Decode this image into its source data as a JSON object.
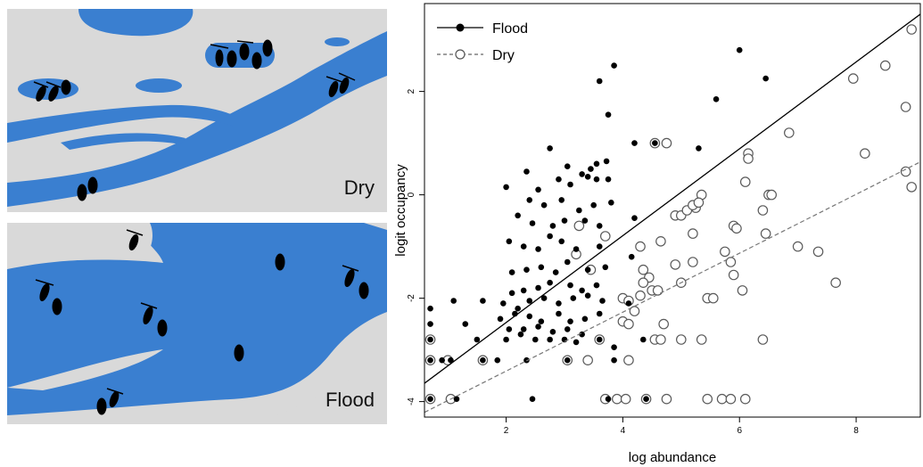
{
  "panels": {
    "dry_label": "Dry",
    "flood_label": "Flood"
  },
  "colors": {
    "water": "#3a7fd0",
    "land": "#d9d9d9",
    "flood_points": "#000000",
    "dry_points": "#666666"
  },
  "chart_data": {
    "type": "scatter",
    "xlabel": "log abundance",
    "ylabel": "logit occupancy",
    "xlim": [
      0.6,
      9.1
    ],
    "ylim": [
      -4.3,
      3.7
    ],
    "xticks": [
      2,
      4,
      6,
      8
    ],
    "yticks": [
      -4,
      -2,
      0,
      2
    ],
    "legend_position": "top-left",
    "grid": false,
    "series": [
      {
        "name": "Flood",
        "marker": "filled-circle",
        "line": "solid",
        "fit": {
          "intercept": -4.15,
          "slope": 0.84
        },
        "points": [
          [
            3.6,
            2.2
          ],
          [
            3.85,
            2.5
          ],
          [
            4.2,
            1.0
          ],
          [
            4.55,
            1.0
          ],
          [
            5.6,
            1.85
          ],
          [
            6.0,
            2.8
          ],
          [
            6.45,
            2.25
          ],
          [
            2.75,
            0.9
          ],
          [
            3.05,
            0.55
          ],
          [
            3.3,
            0.4
          ],
          [
            3.45,
            0.5
          ],
          [
            3.55,
            0.6
          ],
          [
            3.72,
            0.65
          ],
          [
            3.75,
            1.55
          ],
          [
            5.3,
            0.9
          ],
          [
            2.35,
            0.45
          ],
          [
            2.55,
            0.1
          ],
          [
            2.9,
            0.3
          ],
          [
            3.1,
            0.2
          ],
          [
            3.4,
            0.35
          ],
          [
            3.55,
            0.3
          ],
          [
            3.75,
            0.3
          ],
          [
            2.0,
            0.15
          ],
          [
            2.4,
            -0.1
          ],
          [
            2.65,
            -0.2
          ],
          [
            2.95,
            -0.1
          ],
          [
            3.25,
            -0.3
          ],
          [
            3.5,
            -0.2
          ],
          [
            3.8,
            -0.15
          ],
          [
            2.2,
            -0.4
          ],
          [
            2.45,
            -0.55
          ],
          [
            2.8,
            -0.6
          ],
          [
            3.0,
            -0.5
          ],
          [
            3.35,
            -0.5
          ],
          [
            3.6,
            -0.6
          ],
          [
            4.2,
            -0.45
          ],
          [
            2.05,
            -0.9
          ],
          [
            2.3,
            -1.0
          ],
          [
            2.55,
            -1.05
          ],
          [
            2.75,
            -0.8
          ],
          [
            2.95,
            -0.9
          ],
          [
            3.2,
            -1.05
          ],
          [
            3.6,
            -1.0
          ],
          [
            2.1,
            -1.5
          ],
          [
            2.35,
            -1.45
          ],
          [
            2.6,
            -1.4
          ],
          [
            2.85,
            -1.5
          ],
          [
            3.05,
            -1.3
          ],
          [
            3.4,
            -1.45
          ],
          [
            3.7,
            -1.4
          ],
          [
            4.15,
            -1.2
          ],
          [
            2.1,
            -1.9
          ],
          [
            2.3,
            -1.85
          ],
          [
            2.55,
            -1.8
          ],
          [
            2.75,
            -1.7
          ],
          [
            3.1,
            -1.75
          ],
          [
            3.3,
            -1.85
          ],
          [
            3.55,
            -1.75
          ],
          [
            1.1,
            -2.05
          ],
          [
            1.6,
            -2.05
          ],
          [
            1.95,
            -2.1
          ],
          [
            2.2,
            -2.2
          ],
          [
            2.4,
            -2.05
          ],
          [
            2.65,
            -2.0
          ],
          [
            2.9,
            -2.1
          ],
          [
            3.15,
            -2.0
          ],
          [
            3.4,
            -1.95
          ],
          [
            3.65,
            -2.05
          ],
          [
            1.9,
            -2.4
          ],
          [
            2.15,
            -2.3
          ],
          [
            2.4,
            -2.35
          ],
          [
            2.6,
            -2.45
          ],
          [
            2.9,
            -2.3
          ],
          [
            3.1,
            -2.45
          ],
          [
            3.35,
            -2.4
          ],
          [
            3.6,
            -2.3
          ],
          [
            4.1,
            -2.1
          ],
          [
            2.05,
            -2.6
          ],
          [
            2.3,
            -2.6
          ],
          [
            2.55,
            -2.55
          ],
          [
            2.8,
            -2.65
          ],
          [
            3.05,
            -2.6
          ],
          [
            3.3,
            -2.7
          ],
          [
            0.7,
            -2.2
          ],
          [
            0.7,
            -2.5
          ],
          [
            1.3,
            -2.5
          ],
          [
            1.5,
            -2.8
          ],
          [
            2.0,
            -2.8
          ],
          [
            2.25,
            -2.7
          ],
          [
            2.5,
            -2.8
          ],
          [
            2.75,
            -2.8
          ],
          [
            3.0,
            -2.8
          ],
          [
            3.2,
            -2.85
          ],
          [
            3.6,
            -2.8
          ],
          [
            3.85,
            -2.95
          ],
          [
            4.35,
            -2.8
          ],
          [
            0.7,
            -2.8
          ],
          [
            0.7,
            -3.2
          ],
          [
            0.9,
            -3.2
          ],
          [
            1.05,
            -3.2
          ],
          [
            1.6,
            -3.2
          ],
          [
            1.85,
            -3.2
          ],
          [
            2.35,
            -3.2
          ],
          [
            3.05,
            -3.2
          ],
          [
            3.85,
            -3.2
          ],
          [
            0.7,
            -3.95
          ],
          [
            1.15,
            -3.95
          ],
          [
            2.45,
            -3.95
          ],
          [
            3.75,
            -3.95
          ],
          [
            4.4,
            -3.95
          ]
        ]
      },
      {
        "name": "Dry",
        "marker": "open-circle",
        "line": "dashed",
        "fit": {
          "intercept": -4.55,
          "slope": 0.57
        },
        "points": [
          [
            8.95,
            3.2
          ],
          [
            8.5,
            2.5
          ],
          [
            8.85,
            1.7
          ],
          [
            7.95,
            2.25
          ],
          [
            6.85,
            1.2
          ],
          [
            8.15,
            0.8
          ],
          [
            8.85,
            0.45
          ],
          [
            8.95,
            0.15
          ],
          [
            4.55,
            1.0
          ],
          [
            4.75,
            1.0
          ],
          [
            6.15,
            0.8
          ],
          [
            6.15,
            0.7
          ],
          [
            6.1,
            0.25
          ],
          [
            6.5,
            0.0
          ],
          [
            6.55,
            0.0
          ],
          [
            5.35,
            0.0
          ],
          [
            5.25,
            -0.25
          ],
          [
            6.4,
            -0.3
          ],
          [
            4.9,
            -0.4
          ],
          [
            5.0,
            -0.4
          ],
          [
            5.1,
            -0.3
          ],
          [
            5.2,
            -0.2
          ],
          [
            5.3,
            -0.15
          ],
          [
            5.2,
            -0.75
          ],
          [
            5.9,
            -0.6
          ],
          [
            5.95,
            -0.65
          ],
          [
            6.45,
            -0.75
          ],
          [
            3.25,
            -0.6
          ],
          [
            3.7,
            -0.8
          ],
          [
            3.2,
            -1.15
          ],
          [
            4.3,
            -1.0
          ],
          [
            4.65,
            -0.9
          ],
          [
            3.45,
            -1.45
          ],
          [
            5.75,
            -1.1
          ],
          [
            7.0,
            -1.0
          ],
          [
            7.35,
            -1.1
          ],
          [
            4.35,
            -1.45
          ],
          [
            4.45,
            -1.6
          ],
          [
            4.35,
            -1.7
          ],
          [
            4.9,
            -1.35
          ],
          [
            5.2,
            -1.3
          ],
          [
            5.85,
            -1.3
          ],
          [
            5.9,
            -1.55
          ],
          [
            6.05,
            -1.85
          ],
          [
            7.65,
            -1.7
          ],
          [
            4.0,
            -2.0
          ],
          [
            4.1,
            -2.05
          ],
          [
            4.2,
            -2.25
          ],
          [
            4.3,
            -1.95
          ],
          [
            4.5,
            -1.85
          ],
          [
            4.6,
            -1.85
          ],
          [
            5.0,
            -1.7
          ],
          [
            5.45,
            -2.0
          ],
          [
            5.55,
            -2.0
          ],
          [
            4.0,
            -2.45
          ],
          [
            4.1,
            -2.5
          ],
          [
            4.7,
            -2.5
          ],
          [
            0.7,
            -2.8
          ],
          [
            3.6,
            -2.8
          ],
          [
            4.55,
            -2.8
          ],
          [
            4.65,
            -2.8
          ],
          [
            5.0,
            -2.8
          ],
          [
            5.35,
            -2.8
          ],
          [
            6.4,
            -2.8
          ],
          [
            0.7,
            -3.2
          ],
          [
            1.0,
            -3.2
          ],
          [
            1.6,
            -3.2
          ],
          [
            3.05,
            -3.2
          ],
          [
            3.4,
            -3.2
          ],
          [
            4.1,
            -3.2
          ],
          [
            0.7,
            -3.95
          ],
          [
            1.05,
            -3.95
          ],
          [
            3.7,
            -3.95
          ],
          [
            3.9,
            -3.95
          ],
          [
            4.05,
            -3.95
          ],
          [
            4.4,
            -3.95
          ],
          [
            4.75,
            -3.95
          ],
          [
            5.45,
            -3.95
          ],
          [
            5.7,
            -3.95
          ],
          [
            5.85,
            -3.95
          ],
          [
            6.1,
            -3.95
          ]
        ]
      }
    ]
  }
}
